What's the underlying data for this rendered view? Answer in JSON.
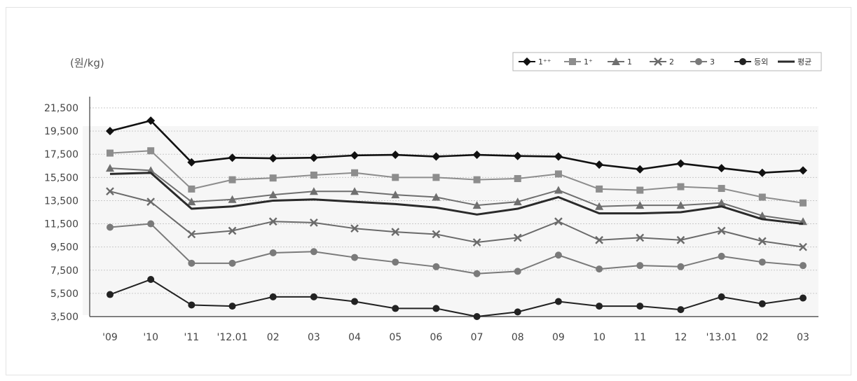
{
  "chart_data": {
    "type": "line",
    "unit_label": "(원/kg)",
    "categories": [
      "'09",
      "'10",
      "'11",
      "'12.01",
      "02",
      "03",
      "04",
      "05",
      "06",
      "07",
      "08",
      "09",
      "10",
      "11",
      "12",
      "'13.01",
      "02",
      "03"
    ],
    "yticks": [
      "21,500",
      "19,500",
      "17,500",
      "15,500",
      "13,500",
      "11,500",
      "9,500",
      "7,500",
      "5,500",
      "3,500"
    ],
    "ylim": [
      3500,
      21500
    ],
    "grid": true,
    "legend_position": "top-right",
    "series": [
      {
        "name": "1⁺⁺",
        "marker": "diamond",
        "color": "#111111",
        "width": 2.6,
        "values": [
          19500,
          20400,
          16800,
          17200,
          17150,
          17200,
          17400,
          17450,
          17300,
          17450,
          17350,
          17300,
          16600,
          16200,
          16700,
          16300,
          15900,
          16100
        ]
      },
      {
        "name": "1⁺",
        "marker": "square",
        "color": "#8d8d8d",
        "width": 2.0,
        "values": [
          17600,
          17800,
          14500,
          15300,
          15450,
          15700,
          15900,
          15500,
          15500,
          15300,
          15400,
          15800,
          14500,
          14400,
          14700,
          14550,
          13800,
          13300
        ]
      },
      {
        "name": "1",
        "marker": "triangle",
        "color": "#6f6f6f",
        "width": 2.0,
        "values": [
          16300,
          16100,
          13400,
          13600,
          14000,
          14300,
          14300,
          14000,
          13800,
          13100,
          13400,
          14400,
          13000,
          13100,
          13100,
          13300,
          12200,
          11700
        ]
      },
      {
        "name": "2",
        "marker": "x",
        "color": "#6a6a6a",
        "width": 2.0,
        "values": [
          14300,
          13400,
          10600,
          10900,
          11700,
          11600,
          11100,
          10800,
          10600,
          9900,
          10300,
          11700,
          10100,
          10300,
          10100,
          10900,
          10000,
          9500
        ]
      },
      {
        "name": "3",
        "marker": "circle",
        "color": "#7a7a7a",
        "width": 2.0,
        "values": [
          11200,
          11500,
          8100,
          8100,
          9000,
          9100,
          8600,
          8200,
          7800,
          7200,
          7400,
          8800,
          7600,
          7900,
          7800,
          8700,
          8200,
          7900
        ]
      },
      {
        "name": "등외",
        "marker": "circle",
        "color": "#222222",
        "width": 2.0,
        "values": [
          5400,
          6700,
          4500,
          4400,
          5200,
          5200,
          4800,
          4200,
          4200,
          3500,
          3900,
          4800,
          4400,
          4400,
          4100,
          5200,
          4600,
          5100
        ]
      },
      {
        "name": "평균",
        "marker": "none",
        "color": "#2a2a2a",
        "width": 3.0,
        "values": [
          15800,
          15900,
          12800,
          13000,
          13500,
          13600,
          13400,
          13200,
          12900,
          12300,
          12800,
          13800,
          12400,
          12400,
          12500,
          13000,
          11900,
          11500
        ]
      }
    ]
  }
}
